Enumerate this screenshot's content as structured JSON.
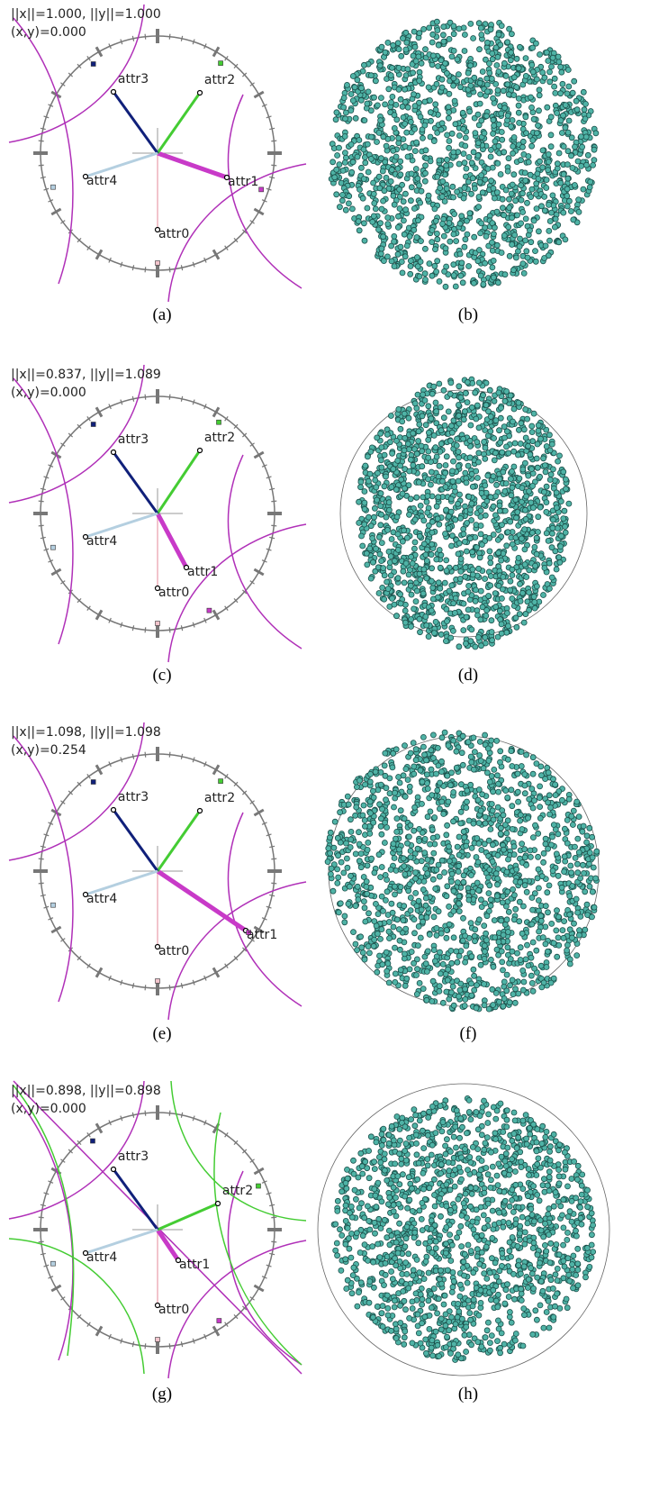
{
  "panels": [
    {
      "norms": "||x||=1.000, ||y||=1.000",
      "product": "(x,y)=0.000",
      "attrs": [
        "attr0",
        "attr1",
        "attr2",
        "attr3",
        "attr4"
      ],
      "caption": "(a)",
      "scatter_caption": "(b)"
    },
    {
      "norms": "||x||=0.837, ||y||=1.089",
      "product": "(x,y)=0.000",
      "attrs": [
        "attr0",
        "attr1",
        "attr2",
        "attr3",
        "attr4"
      ],
      "caption": "(c)",
      "scatter_caption": "(d)"
    },
    {
      "norms": "||x||=1.098, ||y||=1.098",
      "product": "(x,y)=0.254",
      "attrs": [
        "attr0",
        "attr1",
        "attr2",
        "attr3",
        "attr4"
      ],
      "caption": "(e)",
      "scatter_caption": "(f)"
    },
    {
      "norms": "||x||=0.898, ||y||=0.898",
      "product": "(x,y)=0.000",
      "attrs": [
        "attr0",
        "attr1",
        "attr2",
        "attr3",
        "attr4"
      ],
      "caption": "(g)",
      "scatter_caption": "(h)"
    }
  ]
}
